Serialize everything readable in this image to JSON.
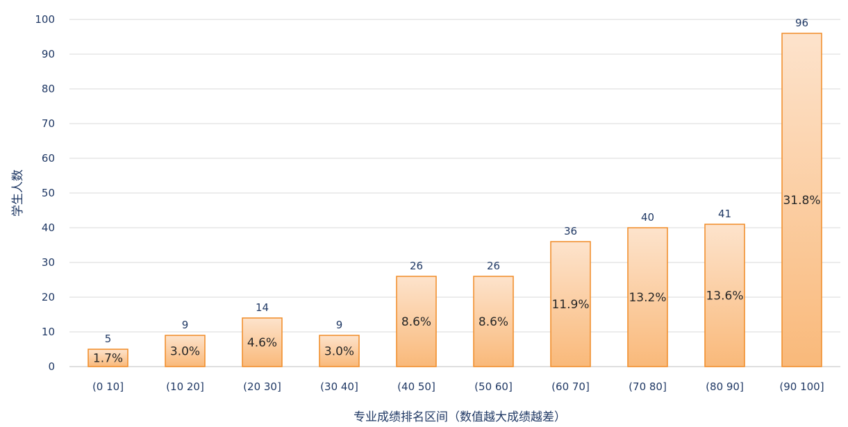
{
  "chart_data": {
    "type": "bar",
    "title": "",
    "xlabel": "专业成绩排名区间（数值越大成绩越差）",
    "ylabel": "学生人数",
    "ylim": [
      0,
      100
    ],
    "yticks": [
      0,
      10,
      20,
      30,
      40,
      50,
      60,
      70,
      80,
      90,
      100
    ],
    "grid": true,
    "legend": "none",
    "categories": [
      "(0 10]",
      "(10 20]",
      "(20 30]",
      "(30 40]",
      "(40 50]",
      "(50 60]",
      "(60 70]",
      "(70 80]",
      "(80 90]",
      "(90 100]"
    ],
    "values": [
      5,
      9,
      14,
      9,
      26,
      26,
      36,
      40,
      41,
      96
    ],
    "percent_labels": [
      "1.7%",
      "3.0%",
      "4.6%",
      "3.0%",
      "8.6%",
      "8.6%",
      "11.9%",
      "13.2%",
      "13.6%",
      "31.8%"
    ],
    "colors": {
      "bar_top": "#fde3cc",
      "bar_bottom": "#f9b97a",
      "bar_border": "#f08a24",
      "label_text": "#1f3864",
      "pct_text": "#262626",
      "grid": "#d9d9d9"
    }
  }
}
